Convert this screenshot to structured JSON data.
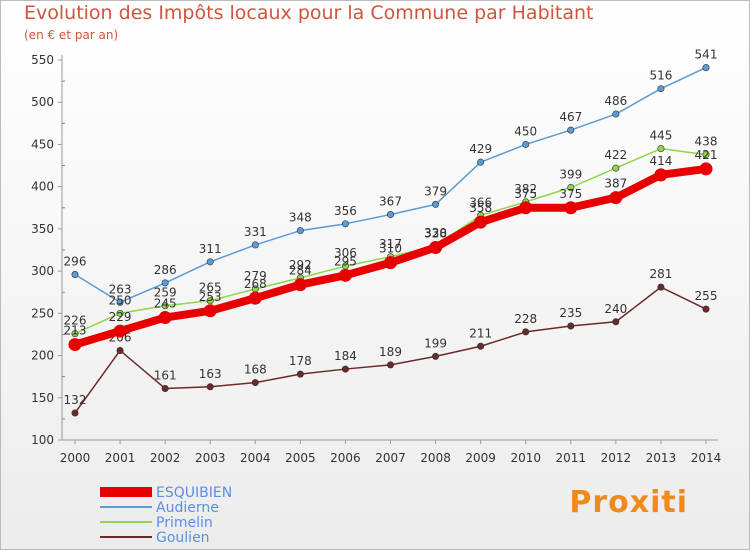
{
  "title": "Evolution des Impôts locaux pour la Commune par Habitant",
  "subtitle": "(en € et par an)",
  "logo": "Proxiti",
  "chart_data": {
    "type": "line",
    "title": "Evolution des Impôts locaux pour la Commune par Habitant",
    "subtitle": "(en € et par an)",
    "x": [
      "2000",
      "2001",
      "2002",
      "2003",
      "2004",
      "2005",
      "2006",
      "2007",
      "2008",
      "2009",
      "2010",
      "2011",
      "2012",
      "2013",
      "2014"
    ],
    "ylim": [
      100,
      550
    ],
    "yticks": [
      100,
      150,
      200,
      250,
      300,
      350,
      400,
      450,
      500,
      550
    ],
    "grid": false,
    "legend_position": "bottom-left",
    "series": [
      {
        "name": "ESQUIBIEN",
        "color": "#e60000",
        "values": [
          213,
          229,
          245,
          253,
          268,
          284,
          295,
          310,
          328,
          358,
          375,
          375,
          387,
          414,
          421
        ]
      },
      {
        "name": "Audierne",
        "color": "#5b9bd5",
        "values": [
          296,
          263,
          286,
          311,
          331,
          348,
          356,
          367,
          379,
          429,
          450,
          467,
          486,
          516,
          541
        ]
      },
      {
        "name": "Primelin",
        "color": "#8ed64a",
        "values": [
          226,
          250,
          259,
          265,
          279,
          292,
          306,
          317,
          330,
          366,
          382,
          399,
          422,
          445,
          438
        ]
      },
      {
        "name": "Goulien",
        "color": "#6b2a2a",
        "values": [
          132,
          206,
          161,
          163,
          168,
          178,
          184,
          189,
          199,
          211,
          228,
          235,
          240,
          281,
          255
        ]
      }
    ]
  }
}
